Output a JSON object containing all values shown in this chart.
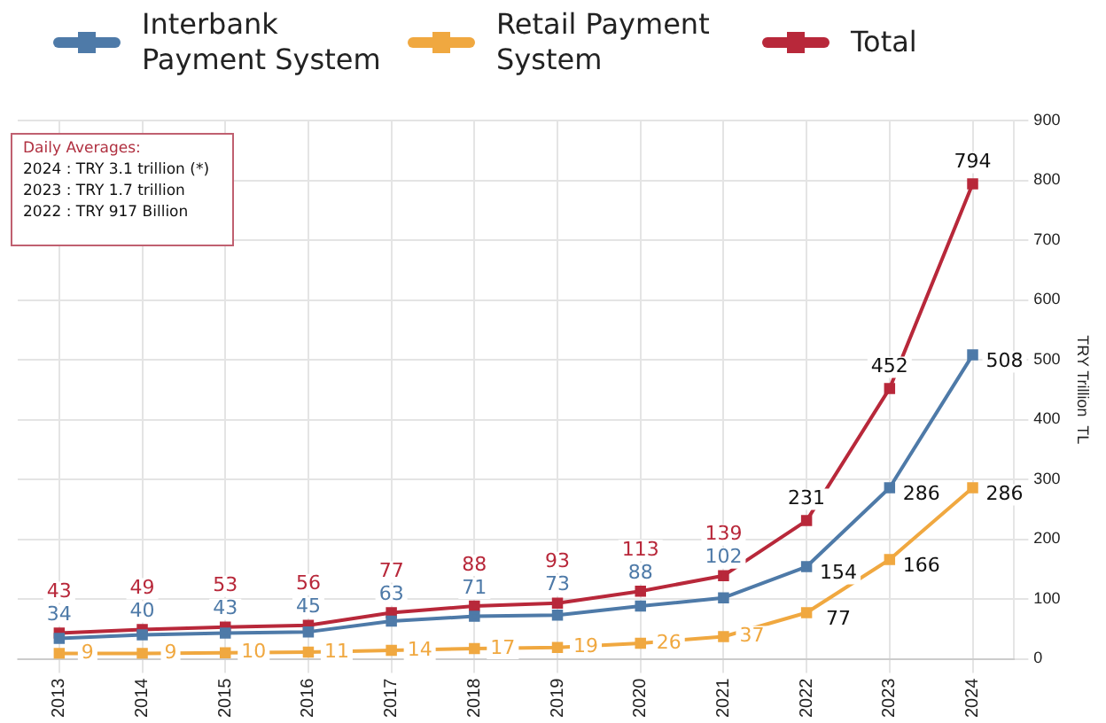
{
  "chart_data": {
    "type": "line",
    "ylabel": "TRY Trillion  TL",
    "categories": [
      "2013",
      "2014",
      "2015",
      "2016",
      "2017",
      "2018",
      "2019",
      "2020",
      "2021",
      "2022",
      "2023",
      "2024"
    ],
    "series": [
      {
        "name": "Interbank Payment System",
        "color": "#4e7aa8",
        "values": [
          34,
          40,
          43,
          45,
          63,
          71,
          73,
          88,
          102,
          154,
          286,
          508
        ]
      },
      {
        "name": "Retail Payment System",
        "color": "#f0a840",
        "values": [
          9,
          9,
          10,
          11,
          14,
          17,
          19,
          26,
          37,
          77,
          166,
          286
        ]
      },
      {
        "name": "Total",
        "color": "#b8283a",
        "values": [
          43,
          49,
          53,
          56,
          77,
          88,
          93,
          113,
          139,
          231,
          452,
          794
        ]
      }
    ],
    "ylim": [
      0,
      900
    ],
    "yticks": [
      0,
      100,
      200,
      300,
      400,
      500,
      600,
      700,
      800,
      900
    ],
    "grid": true,
    "legend": "top",
    "marker": "square",
    "line_style": "solid",
    "data_labels": true,
    "annotations": [
      "Daily Averages:",
      "2024 : TRY  3.1 trillion (*)",
      "2023 : TRY  1.7 trillion",
      "2022 : TRY  917 Billion"
    ]
  }
}
